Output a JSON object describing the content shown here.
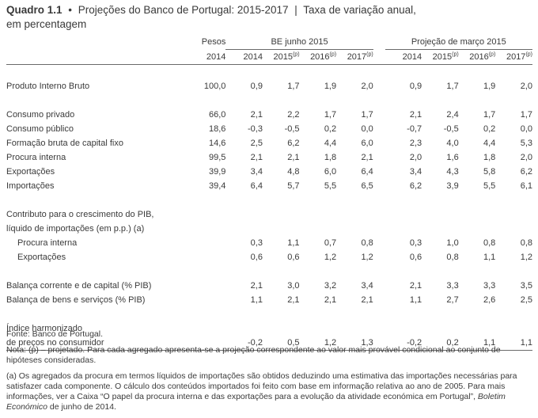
{
  "title": {
    "code": "Quadro 1.1",
    "bullet": "•",
    "main": "Projeções do Banco de Portugal: 2015-2017",
    "separator": "|",
    "subtitle_1": "Taxa de variação anual,",
    "subtitle_2": "em percentagem"
  },
  "header": {
    "pesos_line1": "Pesos",
    "pesos_line2": "2014",
    "group_be": "BE junho 2015",
    "group_proj": "Projeção de março 2015",
    "years": [
      "2014",
      "2015",
      "2016",
      "2017",
      "2014",
      "2015",
      "2016",
      "2017"
    ],
    "proj_mark": "(p)"
  },
  "rows": [
    {
      "label": "Produto Interno Bruto",
      "pesos": "100,0",
      "values": [
        "0,9",
        "1,7",
        "1,9",
        "2,0",
        "0,9",
        "1,7",
        "1,9",
        "2,0"
      ]
    },
    {
      "label": "Consumo privado",
      "pesos": "66,0",
      "values": [
        "2,1",
        "2,2",
        "1,7",
        "1,7",
        "2,1",
        "2,4",
        "1,7",
        "1,7"
      ]
    },
    {
      "label": "Consumo público",
      "pesos": "18,6",
      "values": [
        "-0,3",
        "-0,5",
        "0,2",
        "0,0",
        "-0,7",
        "-0,5",
        "0,2",
        "0,0"
      ]
    },
    {
      "label": "Formação bruta de capital fixo",
      "pesos": "14,6",
      "values": [
        "2,5",
        "6,2",
        "4,4",
        "6,0",
        "2,3",
        "4,0",
        "4,4",
        "5,3"
      ]
    },
    {
      "label": "Procura interna",
      "pesos": "99,5",
      "values": [
        "2,1",
        "2,1",
        "1,8",
        "2,1",
        "2,0",
        "1,6",
        "1,8",
        "2,0"
      ]
    },
    {
      "label": "Exportações",
      "pesos": "39,9",
      "values": [
        "3,4",
        "4,8",
        "6,0",
        "6,4",
        "3,4",
        "4,3",
        "5,8",
        "6,2"
      ]
    },
    {
      "label": "Importações",
      "pesos": "39,4",
      "values": [
        "6,4",
        "5,7",
        "5,5",
        "6,5",
        "6,2",
        "3,9",
        "5,5",
        "6,1"
      ]
    },
    {
      "label_1": "Contributo para o crescimento do PIB,",
      "label_2": "líquido de importações (em p.p.) (a)"
    },
    {
      "label": "Procura interna",
      "values": [
        "0,3",
        "1,1",
        "0,7",
        "0,8",
        "0,3",
        "1,0",
        "0,8",
        "0,8"
      ]
    },
    {
      "label": "Exportações",
      "values": [
        "0,6",
        "0,6",
        "1,2",
        "1,2",
        "0,6",
        "0,8",
        "1,1",
        "1,2"
      ]
    },
    {
      "label": "Balança corrente e de capital (% PIB)",
      "values": [
        "2,1",
        "3,0",
        "3,2",
        "3,4",
        "2,1",
        "3,3",
        "3,3",
        "3,5"
      ]
    },
    {
      "label": "Balança de bens e serviços (% PIB)",
      "values": [
        "1,1",
        "2,1",
        "2,1",
        "2,1",
        "1,1",
        "2,7",
        "2,6",
        "2,5"
      ]
    },
    {
      "label_1": "Índice harmonizado",
      "label_2": "de preços no consumidor",
      "values": [
        "-0,2",
        "0,5",
        "1,2",
        "1,3",
        "-0,2",
        "0,2",
        "1,1",
        "1,1"
      ]
    }
  ],
  "notes": {
    "source": "Fonte: Banco de Portugal.",
    "note_p": "Nota: (p) – projetado. Para cada agregado apresenta-se a projeção correspondente ao valor mais provável condicional ao conjunto de hipóteses consideradas.",
    "note_a_1": "(a) Os agregados da procura em termos líquidos de importações são obtidos deduzindo uma estimativa das importações necessárias para satisfazer cada componente. O cálculo dos conteúdos importados foi feito com base em informação relativa ao ano de 2005. Para mais informações, ver a Caixa “O papel da procura interna e das exportações para a evolução da atividade económica em Portugal”, ",
    "note_a_italic": "Boletim Económico",
    "note_a_2": " de junho de 2014."
  }
}
